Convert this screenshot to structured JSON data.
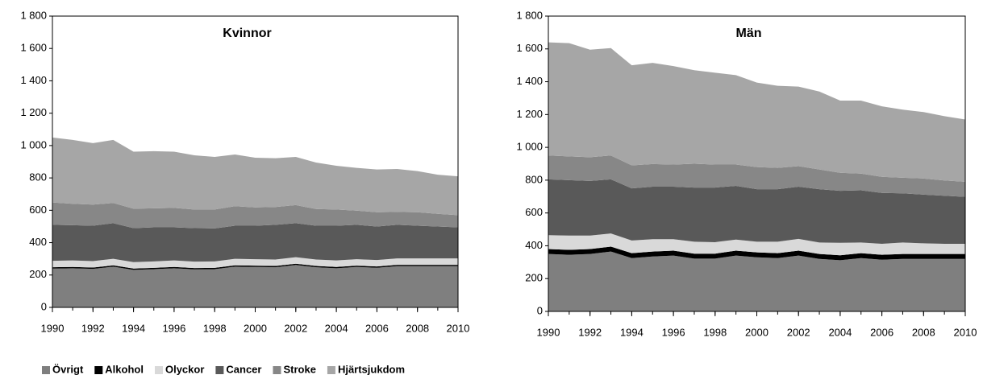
{
  "chart_data": [
    {
      "type": "stacked_area",
      "title": "Kvinnor",
      "x": [
        1990,
        1991,
        1992,
        1993,
        1994,
        1995,
        1996,
        1997,
        1998,
        1999,
        2000,
        2001,
        2002,
        2003,
        2004,
        2005,
        2006,
        2007,
        2008,
        2009,
        2010
      ],
      "xlim": [
        1990,
        2010
      ],
      "xticks": [
        1990,
        1992,
        1994,
        1996,
        1998,
        2000,
        2002,
        2004,
        2006,
        2008,
        2010
      ],
      "ylim": [
        0,
        1800
      ],
      "yticks": [
        0,
        200,
        400,
        600,
        800,
        {
          "value": 1000,
          "label": "1 000"
        },
        {
          "value": 1200,
          "label": "1 200"
        },
        {
          "value": 1400,
          "label": "1 400"
        },
        {
          "value": 1600,
          "label": "1 600"
        },
        {
          "value": 1800,
          "label": "1 800"
        }
      ],
      "legend": "bottom-left",
      "series": [
        {
          "name": "Övrigt",
          "color": "#7f7f7f",
          "values": [
            240,
            242,
            238,
            252,
            232,
            236,
            242,
            235,
            236,
            252,
            250,
            248,
            262,
            248,
            242,
            250,
            245,
            255,
            255,
            255,
            255
          ]
        },
        {
          "name": "Alkohol",
          "color": "#000000",
          "values": [
            8,
            8,
            8,
            8,
            8,
            8,
            8,
            8,
            8,
            8,
            8,
            8,
            8,
            8,
            8,
            8,
            8,
            8,
            8,
            8,
            8
          ]
        },
        {
          "name": "Olyckor",
          "color": "#d9d9d9",
          "values": [
            40,
            40,
            40,
            40,
            40,
            40,
            40,
            40,
            40,
            40,
            40,
            40,
            40,
            40,
            40,
            40,
            40,
            40,
            40,
            40,
            40
          ]
        },
        {
          "name": "Cancer",
          "color": "#595959",
          "values": [
            222,
            218,
            219,
            220,
            210,
            211,
            205,
            207,
            204,
            205,
            207,
            214,
            210,
            209,
            215,
            212,
            207,
            207,
            202,
            197,
            192
          ]
        },
        {
          "name": "Stroke",
          "color": "#878787",
          "values": [
            138,
            132,
            130,
            125,
            120,
            117,
            120,
            115,
            117,
            120,
            113,
            110,
            112,
            103,
            100,
            88,
            88,
            80,
            83,
            78,
            75
          ]
        },
        {
          "name": "Hjärtsjukdom",
          "color": "#a6a6a6",
          "values": [
            402,
            395,
            380,
            390,
            352,
            353,
            347,
            335,
            325,
            320,
            307,
            302,
            298,
            287,
            270,
            264,
            264,
            265,
            254,
            242,
            240
          ]
        }
      ]
    },
    {
      "type": "stacked_area",
      "title": "Män",
      "x": [
        1990,
        1991,
        1992,
        1993,
        1994,
        1995,
        1996,
        1997,
        1998,
        1999,
        2000,
        2001,
        2002,
        2003,
        2004,
        2005,
        2006,
        2007,
        2008,
        2009,
        2010
      ],
      "xlim": [
        1990,
        2010
      ],
      "xticks": [
        1990,
        1992,
        1994,
        1996,
        1998,
        2000,
        2002,
        2004,
        2006,
        2008,
        2010
      ],
      "ylim": [
        0,
        1800
      ],
      "yticks": [
        0,
        200,
        400,
        600,
        800,
        {
          "value": 1000,
          "label": "1 000"
        },
        {
          "value": 1200,
          "label": "1 200"
        },
        {
          "value": 1400,
          "label": "1 400"
        },
        {
          "value": 1600,
          "label": "1 600"
        },
        {
          "value": 1800,
          "label": "1 800"
        }
      ],
      "series": [
        {
          "name": "Övrigt",
          "color": "#7f7f7f",
          "values": [
            350,
            345,
            350,
            365,
            325,
            335,
            340,
            322,
            322,
            340,
            330,
            325,
            340,
            320,
            312,
            325,
            315,
            320,
            320,
            320,
            320
          ]
        },
        {
          "name": "Alkohol",
          "color": "#000000",
          "values": [
            30,
            30,
            30,
            30,
            30,
            30,
            30,
            30,
            30,
            30,
            30,
            30,
            30,
            30,
            30,
            30,
            30,
            30,
            30,
            30,
            30
          ]
        },
        {
          "name": "Olyckor",
          "color": "#d9d9d9",
          "values": [
            85,
            87,
            82,
            80,
            77,
            75,
            70,
            73,
            70,
            68,
            65,
            70,
            72,
            70,
            76,
            65,
            67,
            70,
            65,
            62,
            62
          ]
        },
        {
          "name": "Cancer",
          "color": "#595959",
          "values": [
            340,
            338,
            333,
            330,
            318,
            320,
            320,
            330,
            333,
            327,
            320,
            320,
            318,
            325,
            317,
            318,
            310,
            300,
            297,
            293,
            286
          ]
        },
        {
          "name": "Stroke",
          "color": "#878787",
          "values": [
            145,
            145,
            145,
            145,
            140,
            138,
            135,
            145,
            140,
            130,
            135,
            130,
            125,
            120,
            110,
            102,
            98,
            95,
            98,
            93,
            92
          ]
        },
        {
          "name": "Hjärtsjukdom",
          "color": "#a6a6a6",
          "values": [
            690,
            690,
            655,
            655,
            610,
            617,
            600,
            570,
            560,
            545,
            515,
            500,
            485,
            475,
            440,
            445,
            430,
            415,
            405,
            392,
            380
          ]
        }
      ]
    }
  ]
}
